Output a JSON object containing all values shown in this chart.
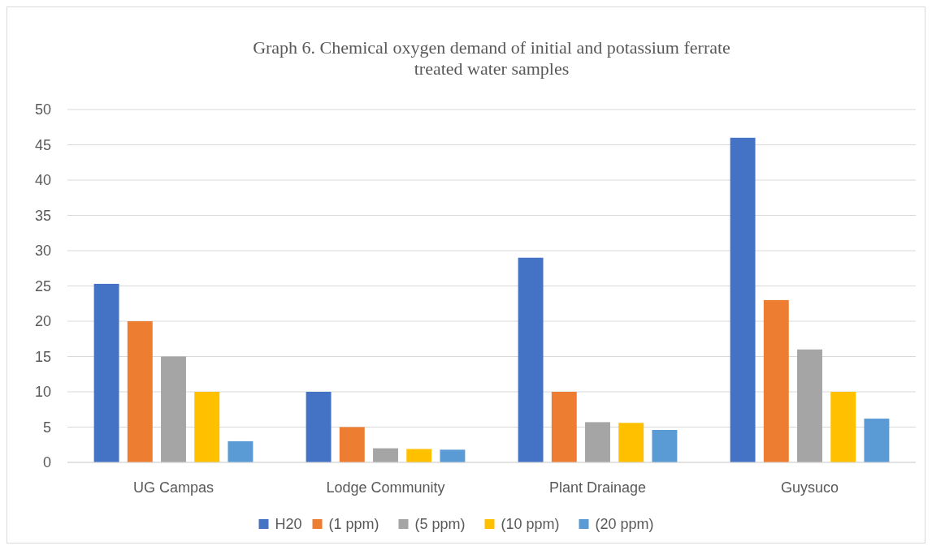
{
  "chart_data": {
    "type": "bar",
    "title": "Graph  6. Chemical oxygen  demand of initial and potassium ferrate treated water samples",
    "categories": [
      "UG Campas",
      "Lodge Community",
      "Plant Drainage",
      "Guysuco"
    ],
    "series": [
      {
        "name": "H20",
        "color": "#4472c4",
        "values": [
          25.3,
          10,
          29,
          46
        ]
      },
      {
        "name": "(1 ppm)",
        "color": "#ed7d31",
        "values": [
          20,
          5,
          10,
          23
        ]
      },
      {
        "name": "(5 ppm)",
        "color": "#a5a5a5",
        "values": [
          15,
          2,
          5.7,
          16
        ]
      },
      {
        "name": "(10 ppm)",
        "color": "#ffc000",
        "values": [
          10,
          1.9,
          5.6,
          10
        ]
      },
      {
        "name": "(20 ppm)",
        "color": "#5b9bd5",
        "values": [
          3,
          1.8,
          4.6,
          6.2
        ]
      }
    ],
    "ylim": [
      0,
      50
    ],
    "yticks": [
      0,
      5,
      10,
      15,
      20,
      25,
      30,
      35,
      40,
      45,
      50
    ],
    "grid": "y",
    "legend": "bottom"
  }
}
